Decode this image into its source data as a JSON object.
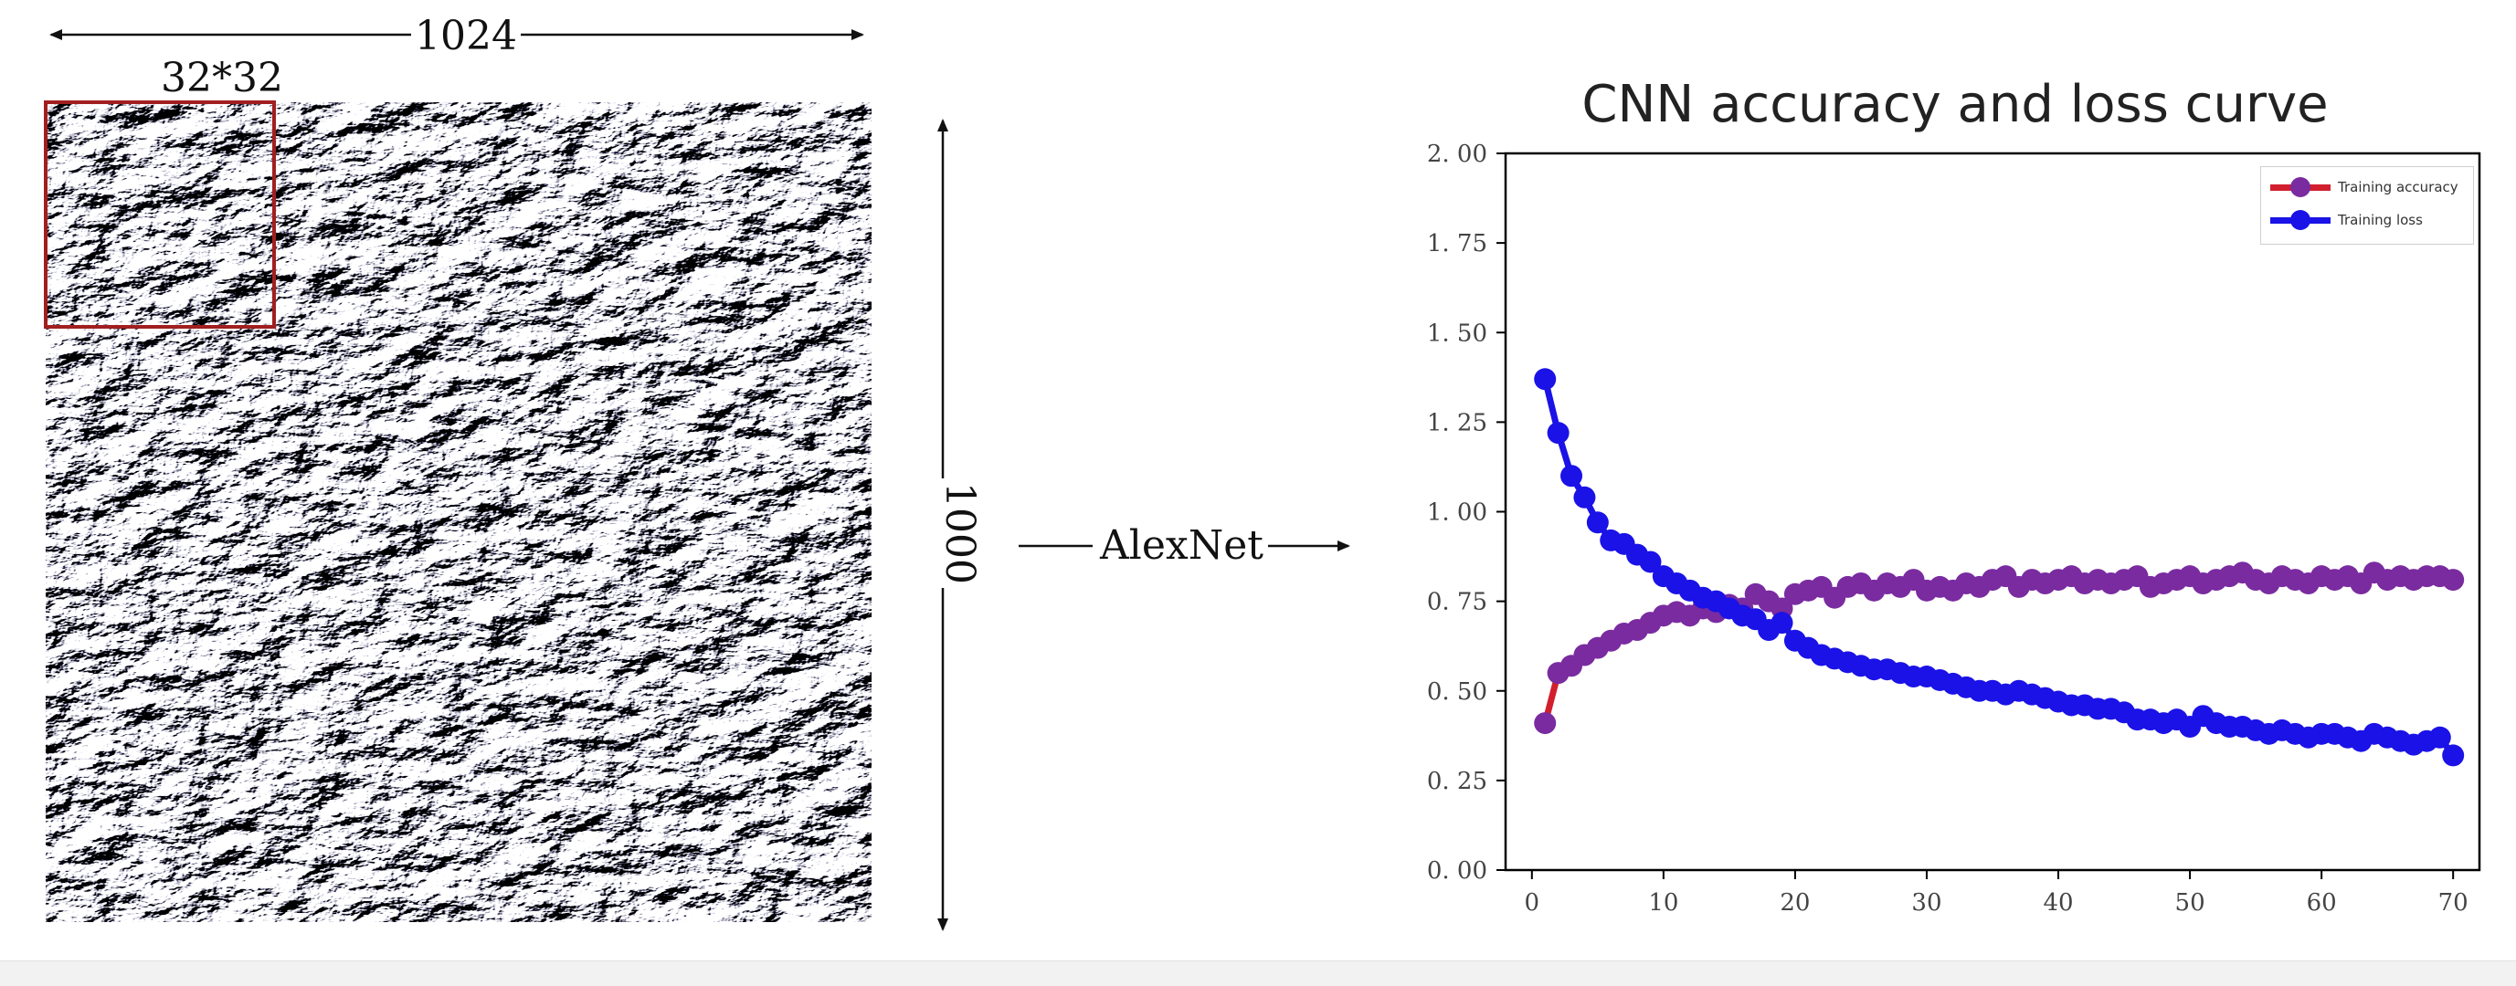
{
  "image_panel": {
    "width_label": "1024",
    "height_label": "1000",
    "patch_label": "32*32",
    "patch_color": "#a11f1f"
  },
  "arrow": {
    "label": "AlexNet"
  },
  "chart_data": {
    "type": "line",
    "title": "CNN accuracy and loss curve",
    "xlabel": "",
    "ylabel": "",
    "xlim": [
      -2,
      72
    ],
    "ylim": [
      0,
      2
    ],
    "xticks": [
      0,
      10,
      20,
      30,
      40,
      50,
      60,
      70
    ],
    "yticks": [
      0.0,
      0.25,
      0.5,
      0.75,
      1.0,
      1.25,
      1.5,
      1.75,
      2.0
    ],
    "ytick_labels": [
      "0. 00",
      "0. 25",
      "0. 50",
      "0. 75",
      "1. 00",
      "1. 25",
      "1. 50",
      "1. 75",
      "2. 00"
    ],
    "grid": false,
    "legend": "top-right",
    "x": [
      1,
      2,
      3,
      4,
      5,
      6,
      7,
      8,
      9,
      10,
      11,
      12,
      13,
      14,
      15,
      16,
      17,
      18,
      19,
      20,
      21,
      22,
      23,
      24,
      25,
      26,
      27,
      28,
      29,
      30,
      31,
      32,
      33,
      34,
      35,
      36,
      37,
      38,
      39,
      40,
      41,
      42,
      43,
      44,
      45,
      46,
      47,
      48,
      49,
      50,
      51,
      52,
      53,
      54,
      55,
      56,
      57,
      58,
      59,
      60,
      61,
      62,
      63,
      64,
      65,
      66,
      67,
      68,
      69,
      70
    ],
    "series": [
      {
        "name": "Training accuracy",
        "line_color": "#d21f2e",
        "marker_color": "#7a2ba0",
        "values": [
          0.41,
          0.55,
          0.57,
          0.6,
          0.62,
          0.64,
          0.66,
          0.67,
          0.69,
          0.71,
          0.72,
          0.71,
          0.73,
          0.72,
          0.74,
          0.73,
          0.77,
          0.75,
          0.73,
          0.77,
          0.78,
          0.79,
          0.76,
          0.79,
          0.8,
          0.78,
          0.8,
          0.79,
          0.81,
          0.78,
          0.79,
          0.78,
          0.8,
          0.79,
          0.81,
          0.82,
          0.79,
          0.81,
          0.8,
          0.81,
          0.82,
          0.8,
          0.81,
          0.8,
          0.81,
          0.82,
          0.79,
          0.8,
          0.81,
          0.82,
          0.8,
          0.81,
          0.82,
          0.83,
          0.81,
          0.8,
          0.82,
          0.81,
          0.8,
          0.82,
          0.81,
          0.82,
          0.8,
          0.83,
          0.81,
          0.82,
          0.81,
          0.82,
          0.82,
          0.81
        ]
      },
      {
        "name": "Training loss",
        "line_color": "#1a12e6",
        "marker_color": "#1a12e6",
        "values": [
          1.37,
          1.22,
          1.1,
          1.04,
          0.97,
          0.92,
          0.91,
          0.88,
          0.86,
          0.82,
          0.8,
          0.78,
          0.76,
          0.75,
          0.73,
          0.71,
          0.7,
          0.67,
          0.69,
          0.64,
          0.62,
          0.6,
          0.59,
          0.58,
          0.57,
          0.56,
          0.56,
          0.55,
          0.54,
          0.54,
          0.53,
          0.52,
          0.51,
          0.5,
          0.5,
          0.49,
          0.5,
          0.49,
          0.48,
          0.47,
          0.46,
          0.46,
          0.45,
          0.45,
          0.44,
          0.42,
          0.42,
          0.41,
          0.42,
          0.4,
          0.43,
          0.41,
          0.4,
          0.4,
          0.39,
          0.38,
          0.39,
          0.38,
          0.37,
          0.38,
          0.38,
          0.37,
          0.36,
          0.38,
          0.37,
          0.36,
          0.35,
          0.36,
          0.37,
          0.32
        ]
      }
    ]
  }
}
